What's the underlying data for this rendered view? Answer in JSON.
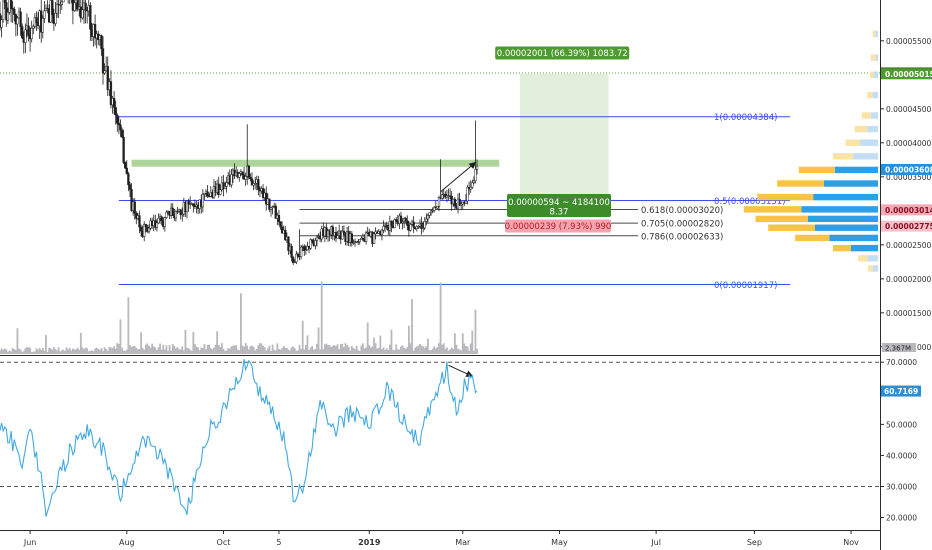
{
  "price_chart": {
    "type": "candlestick",
    "y_axis": {
      "scale": "linear",
      "range": [
        8.8e-06,
        6.1e-05
      ],
      "tick_labels": [
        "0.00005500",
        "0.00005000",
        "0.00004500",
        "0.00004000",
        "0.00003500",
        "0.00003000",
        "0.00002500",
        "0.00002000",
        "0.00001500",
        "0.00001000"
      ],
      "tick_values": [
        5.5e-05,
        5e-05,
        4.5e-05,
        4e-05,
        3.5e-05,
        3e-05,
        2.5e-05,
        2e-05,
        1.5e-05,
        1e-05
      ]
    },
    "x_axis": {
      "tick_labels": [
        "Jun",
        "Aug",
        "Oct",
        "5",
        "2019",
        "Mar",
        "May",
        "Jul",
        "Sep",
        "Nov"
      ],
      "tick_dates": [
        "2018-06-01",
        "2018-08-01",
        "2018-10-01",
        "2018-11-05",
        "2019-01-01",
        "2019-03-01",
        "2019-05-01",
        "2019-07-01",
        "2019-09-01",
        "2019-11-01"
      ],
      "range": [
        "2018-05-13",
        "2019-11-18"
      ]
    },
    "series_colors": {
      "up": "#1a1a1a",
      "down": "#1a1a1a",
      "up_body": "#ffffff"
    },
    "candle_anchors": [
      {
        "date": "2018-05-13",
        "close": 5.9e-05
      },
      {
        "date": "2018-05-20",
        "close": 6.1e-05
      },
      {
        "date": "2018-05-28",
        "close": 5.6e-05
      },
      {
        "date": "2018-06-10",
        "close": 5.8e-05
      },
      {
        "date": "2018-06-25",
        "close": 6.2e-05
      },
      {
        "date": "2018-07-08",
        "close": 5.9e-05
      },
      {
        "date": "2018-07-15",
        "close": 5.4e-05
      },
      {
        "date": "2018-07-22",
        "close": 4.7e-05
      },
      {
        "date": "2018-07-28",
        "close": 4.1e-05
      },
      {
        "date": "2018-08-04",
        "close": 3.1e-05
      },
      {
        "date": "2018-08-10",
        "close": 2.7e-05
      },
      {
        "date": "2018-08-20",
        "close": 2.8e-05
      },
      {
        "date": "2018-09-01",
        "close": 3e-05
      },
      {
        "date": "2018-09-15",
        "close": 3.1e-05
      },
      {
        "date": "2018-09-25",
        "close": 3.3e-05
      },
      {
        "date": "2018-10-15",
        "close": 3.6e-05
      },
      {
        "date": "2018-10-25",
        "close": 3.3e-05
      },
      {
        "date": "2018-11-05",
        "close": 2.9e-05
      },
      {
        "date": "2018-11-14",
        "close": 2.3e-05
      },
      {
        "date": "2018-11-24",
        "close": 2.5e-05
      },
      {
        "date": "2018-12-05",
        "close": 2.7e-05
      },
      {
        "date": "2018-12-20",
        "close": 2.6e-05
      },
      {
        "date": "2019-01-05",
        "close": 2.6e-05
      },
      {
        "date": "2019-01-20",
        "close": 2.9e-05
      },
      {
        "date": "2019-02-01",
        "close": 2.7e-05
      },
      {
        "date": "2019-02-15",
        "close": 3.2e-05
      },
      {
        "date": "2019-03-01",
        "close": 3.1e-05
      },
      {
        "date": "2019-03-10",
        "close": 3.6e-05
      }
    ],
    "volume": {
      "scale_label": "2.367M",
      "spike_dates": [
        "2018-07-28",
        "2018-08-02",
        "2018-10-12",
        "2018-11-20",
        "2018-12-02",
        "2019-01-28",
        "2019-02-15",
        "2019-03-09"
      ]
    },
    "fibonacci": {
      "color": "#3d4de8",
      "levels": [
        {
          "label": "1(0.00004384)",
          "value": 4.384e-05
        },
        {
          "label": "0.5(0.00003151)",
          "value": 3.151e-05
        },
        {
          "label": "0(0.00001917)",
          "value": 1.917e-05
        }
      ],
      "extra_levels": [
        {
          "label": "0.618(0.00003020)",
          "value": 3.02e-05
        },
        {
          "label": "0.705(0.00002820)",
          "value": 2.82e-05
        },
        {
          "label": "0.786(0.00002633)",
          "value": 2.633e-05
        }
      ]
    },
    "resistance_zone": {
      "value": 3.7e-05,
      "color": "#9fcd8a"
    },
    "target_zone": {
      "from_date": "2019-04-06",
      "to_date": "2019-06-01",
      "low": 3.151e-05,
      "high": 5.015e-05,
      "label": "0.00002001 (66.39%) 1083.72"
    },
    "measure_labels": {
      "range_label_line1": "0.00000594 ~ 4184100",
      "range_label_line2": "8.37",
      "drop_label": "0.00000239 (7.93%) 990"
    },
    "horizontal_line_value": 5.027e-05,
    "price_tags": [
      {
        "text": "0.00005027",
        "value": 5.027e-05,
        "bg": "#2f5d1a"
      },
      {
        "text": "0.00005015",
        "value": 5.015e-05,
        "bg": "#4d9a2e"
      },
      {
        "text": "0.00003608",
        "value": 3.608e-05,
        "bg": "#2a8fd6"
      },
      {
        "text": "0.00003014",
        "value": 3.014e-05,
        "bg": "#f4a9b5"
      },
      {
        "text": "0.00002775",
        "value": 2.775e-05,
        "bg": "#f7c0ca"
      }
    ],
    "volume_profile": {
      "colors": {
        "up": "#2c9fe8",
        "down": "#f7c445",
        "up_light": "#c4def6",
        "down_light": "#fbe3a8"
      },
      "bins": [
        {
          "price": 5.6e-05,
          "up": 3,
          "down": 3
        },
        {
          "price": 5.25e-05,
          "up": 3,
          "down": 5
        },
        {
          "price": 5e-05,
          "up": 5,
          "down": 4
        },
        {
          "price": 4.7e-05,
          "up": 6,
          "down": 6
        },
        {
          "price": 4.4e-05,
          "up": 8,
          "down": 10
        },
        {
          "price": 4.2e-05,
          "up": 12,
          "down": 14
        },
        {
          "price": 4e-05,
          "up": 20,
          "down": 16
        },
        {
          "price": 3.8e-05,
          "up": 28,
          "down": 22
        },
        {
          "price": 3.6e-05,
          "up": 48,
          "down": 40
        },
        {
          "price": 3.4e-05,
          "up": 60,
          "down": 52
        },
        {
          "price": 3.2e-05,
          "up": 72,
          "down": 62
        },
        {
          "price": 3.02e-05,
          "up": 85,
          "down": 64
        },
        {
          "price": 2.88e-05,
          "up": 78,
          "down": 58
        },
        {
          "price": 2.75e-05,
          "up": 70,
          "down": 52
        },
        {
          "price": 2.6e-05,
          "up": 54,
          "down": 38
        },
        {
          "price": 2.45e-05,
          "up": 30,
          "down": 20
        },
        {
          "price": 2.3e-05,
          "up": 12,
          "down": 10
        },
        {
          "price": 2.15e-05,
          "up": 6,
          "down": 5
        }
      ]
    }
  },
  "rsi_chart": {
    "type": "line",
    "color": "#42a9e0",
    "y_axis": {
      "range": [
        16,
        72
      ],
      "tick_labels": [
        "70.0000",
        "60.0000",
        "50.0000",
        "40.0000",
        "30.0000",
        "20.0000"
      ],
      "tick_values": [
        70,
        60,
        50,
        40,
        30,
        20
      ]
    },
    "band_lines": [
      70,
      30
    ],
    "last_value_label": "60.7169",
    "last_value": 60.7169,
    "anchors": [
      {
        "date": "2018-05-13",
        "value": 49
      },
      {
        "date": "2018-05-20",
        "value": 45
      },
      {
        "date": "2018-05-27",
        "value": 37
      },
      {
        "date": "2018-06-01",
        "value": 48
      },
      {
        "date": "2018-06-07",
        "value": 35
      },
      {
        "date": "2018-06-12",
        "value": 20
      },
      {
        "date": "2018-06-18",
        "value": 31
      },
      {
        "date": "2018-06-25",
        "value": 40
      },
      {
        "date": "2018-07-05",
        "value": 48
      },
      {
        "date": "2018-07-15",
        "value": 44
      },
      {
        "date": "2018-07-28",
        "value": 28
      },
      {
        "date": "2018-08-10",
        "value": 45
      },
      {
        "date": "2018-08-20",
        "value": 41
      },
      {
        "date": "2018-09-01",
        "value": 30
      },
      {
        "date": "2018-09-08",
        "value": 22
      },
      {
        "date": "2018-09-20",
        "value": 46
      },
      {
        "date": "2018-10-01",
        "value": 55
      },
      {
        "date": "2018-10-10",
        "value": 66
      },
      {
        "date": "2018-10-16",
        "value": 70
      },
      {
        "date": "2018-10-25",
        "value": 58
      },
      {
        "date": "2018-11-01",
        "value": 55
      },
      {
        "date": "2018-11-08",
        "value": 45
      },
      {
        "date": "2018-11-15",
        "value": 25
      },
      {
        "date": "2018-11-22",
        "value": 33
      },
      {
        "date": "2018-12-01",
        "value": 57
      },
      {
        "date": "2018-12-10",
        "value": 48
      },
      {
        "date": "2018-12-20",
        "value": 54
      },
      {
        "date": "2019-01-01",
        "value": 50
      },
      {
        "date": "2019-01-12",
        "value": 61
      },
      {
        "date": "2019-01-22",
        "value": 52
      },
      {
        "date": "2019-02-01",
        "value": 44
      },
      {
        "date": "2019-02-12",
        "value": 60
      },
      {
        "date": "2019-02-19",
        "value": 68
      },
      {
        "date": "2019-02-25",
        "value": 54
      },
      {
        "date": "2019-03-02",
        "value": 62
      },
      {
        "date": "2019-03-07",
        "value": 66
      },
      {
        "date": "2019-03-10",
        "value": 60.7
      }
    ]
  }
}
